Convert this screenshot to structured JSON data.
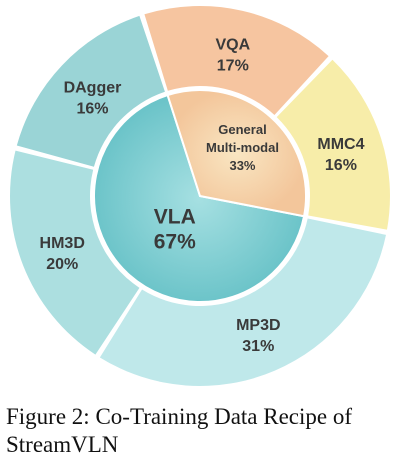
{
  "caption": {
    "figure_label": "Figure 2:",
    "text": "Co-Training Data Recipe of StreamVLN"
  },
  "chart_data": {
    "type": "pie",
    "subtype": "sunburst",
    "inner": [
      {
        "label": "VLA",
        "value": 67,
        "display": "67%",
        "color": "#87d2d6"
      },
      {
        "label": "General Multi-modal",
        "label_lines": [
          "General",
          "Multi-modal"
        ],
        "value": 33,
        "display": "33%",
        "color": "#f6d5b2"
      }
    ],
    "outer": [
      {
        "label": "MP3D",
        "value": 31,
        "display": "31%",
        "parent": "VLA",
        "color": "#bfe8ea"
      },
      {
        "label": "HM3D",
        "value": 20,
        "display": "20%",
        "parent": "VLA",
        "color": "#acdfe0"
      },
      {
        "label": "DAgger",
        "value": 16,
        "display": "16%",
        "parent": "VLA",
        "color": "#9ad4d6"
      },
      {
        "label": "VQA",
        "value": 17,
        "display": "17%",
        "parent": "General Multi-modal",
        "color": "#f6c5a0"
      },
      {
        "label": "MMC4",
        "value": 16,
        "display": "16%",
        "parent": "General Multi-modal",
        "color": "#f7eda9"
      }
    ]
  }
}
